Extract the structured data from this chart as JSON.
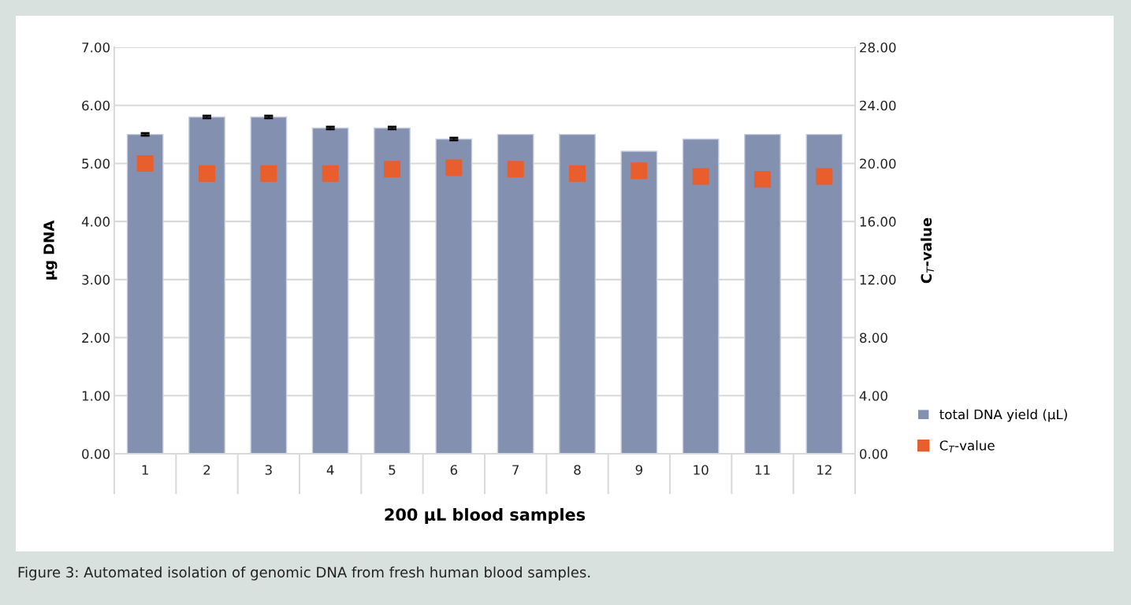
{
  "chart_data": {
    "type": "bar",
    "xlabel": "200 µL blood samples",
    "ylabel": "µg DNA",
    "y2label": "C$_{T}$-value",
    "categories": [
      "1",
      "2",
      "3",
      "4",
      "5",
      "6",
      "7",
      "8",
      "9",
      "10",
      "11",
      "12"
    ],
    "series": [
      {
        "name": "total DNA yield (µL)",
        "color": "#8490b0",
        "values": [
          5.5,
          5.8,
          5.8,
          5.61,
          5.61,
          5.42,
          5.5,
          5.5,
          5.21,
          5.42,
          5.5,
          5.5
        ],
        "errors": [
          0.02,
          0.02,
          0.02,
          0.02,
          0.02,
          0.02,
          null,
          null,
          null,
          null,
          null,
          null
        ]
      },
      {
        "name": "C$_{T}$-value",
        "type": "scatter",
        "axis": "y2",
        "color": "#e85e2c",
        "marker": "square",
        "values": [
          20.0,
          19.3,
          19.3,
          19.3,
          19.6,
          19.7,
          19.6,
          19.3,
          19.5,
          19.1,
          18.9,
          19.1
        ]
      }
    ],
    "ylim": [
      0,
      7
    ],
    "yticks": [
      {
        "value": 0,
        "label": "0.00"
      },
      {
        "value": 1,
        "label": "1.00"
      },
      {
        "value": 2,
        "label": "2.00"
      },
      {
        "value": 3,
        "label": "3.00"
      },
      {
        "value": 4,
        "label": "4.00"
      },
      {
        "value": 5,
        "label": "5.00"
      },
      {
        "value": 6,
        "label": "6.00"
      },
      {
        "value": 7,
        "label": "7.00"
      }
    ],
    "y2lim": [
      0,
      28
    ],
    "y2ticks": [
      {
        "value": 0,
        "label": "0.00"
      },
      {
        "value": 4,
        "label": "4.00"
      },
      {
        "value": 8,
        "label": "8.00"
      },
      {
        "value": 12,
        "label": "12.00"
      },
      {
        "value": 16,
        "label": "16.00"
      },
      {
        "value": 20,
        "label": "20.00"
      },
      {
        "value": 24,
        "label": "24.00"
      },
      {
        "value": 28,
        "label": "28.00"
      }
    ],
    "grid": "y",
    "legend": "bottom right",
    "annotations": [
      "Figure 3: Automated isolation of genomic DNA from fresh human blood samples."
    ]
  }
}
